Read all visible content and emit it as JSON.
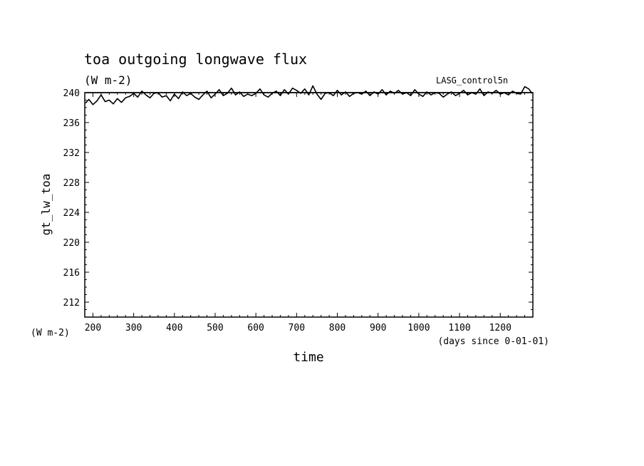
{
  "chart_data": {
    "type": "line",
    "title": "toa outgoing longwave flux",
    "subtitle": "(W m-2)",
    "dataset_label": "LASG_control5n",
    "xlabel": "time",
    "x_units_note": "(days since 0-01-01)",
    "ylabel": "gt_lw_toa",
    "y_units_note": "(W m-2)",
    "xlim": [
      180,
      1280
    ],
    "ylim": [
      210,
      240
    ],
    "x_ticks": [
      200,
      300,
      400,
      500,
      600,
      700,
      800,
      900,
      1000,
      1100,
      1200
    ],
    "y_ticks": [
      212,
      216,
      220,
      224,
      228,
      232,
      236,
      240
    ],
    "grid": false,
    "legend": "none",
    "series": [
      {
        "color": "#000000",
        "x": [
          182,
          190,
          200,
          210,
          220,
          230,
          240,
          250,
          260,
          270,
          280,
          290,
          300,
          310,
          320,
          330,
          340,
          350,
          360,
          370,
          380,
          390,
          400,
          410,
          420,
          430,
          440,
          450,
          460,
          470,
          480,
          490,
          500,
          510,
          520,
          530,
          540,
          550,
          560,
          570,
          580,
          590,
          600,
          610,
          620,
          630,
          640,
          650,
          660,
          670,
          680,
          690,
          700,
          710,
          720,
          730,
          740,
          750,
          760,
          770,
          780,
          790,
          800,
          810,
          820,
          830,
          840,
          850,
          860,
          870,
          880,
          890,
          900,
          910,
          920,
          930,
          940,
          950,
          960,
          970,
          980,
          990,
          1000,
          1010,
          1020,
          1030,
          1040,
          1050,
          1060,
          1070,
          1080,
          1090,
          1100,
          1110,
          1120,
          1130,
          1140,
          1150,
          1160,
          1170,
          1180,
          1190,
          1200,
          1210,
          1220,
          1230,
          1240,
          1250,
          1260,
          1270,
          1278
        ],
        "y": [
          238.6,
          239.1,
          238.4,
          238.9,
          239.7,
          238.8,
          239.0,
          238.5,
          239.2,
          238.7,
          239.3,
          239.5,
          239.9,
          239.4,
          240.2,
          239.7,
          239.3,
          239.9,
          240.0,
          239.4,
          239.6,
          238.9,
          239.8,
          239.2,
          240.1,
          239.6,
          239.9,
          239.4,
          239.1,
          239.7,
          240.2,
          239.3,
          239.8,
          240.4,
          239.6,
          239.9,
          240.6,
          239.7,
          240.1,
          239.5,
          239.8,
          239.6,
          239.9,
          240.5,
          239.7,
          239.4,
          239.9,
          240.2,
          239.6,
          240.4,
          239.8,
          240.6,
          240.3,
          239.9,
          240.5,
          239.7,
          240.9,
          239.8,
          239.1,
          239.9,
          240.0,
          239.6,
          240.3,
          239.7,
          240.1,
          239.5,
          239.9,
          240.0,
          239.8,
          240.2,
          239.6,
          240.1,
          239.8,
          240.4,
          239.7,
          240.2,
          239.9,
          240.3,
          239.8,
          240.0,
          239.6,
          240.4,
          239.8,
          239.5,
          240.1,
          239.7,
          240.0,
          239.9,
          239.4,
          239.8,
          240.1,
          239.6,
          239.9,
          240.3,
          239.7,
          240.0,
          239.8,
          240.5,
          239.6,
          240.1,
          239.9,
          240.3,
          239.8,
          240.0,
          239.7,
          240.2,
          239.9,
          239.8,
          240.8,
          240.5,
          239.9
        ]
      }
    ],
    "reference_line": {
      "y": 240
    }
  }
}
